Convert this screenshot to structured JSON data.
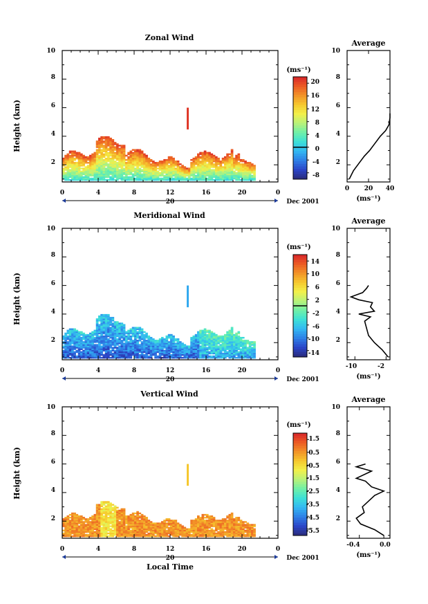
{
  "chart_data": [
    {
      "type": "heatmap",
      "title": "Zonal Wind",
      "ylabel": "Height (km)",
      "xlim": [
        0,
        24
      ],
      "ylim": [
        0.8,
        10
      ],
      "x_ticks": [
        "0",
        "4",
        "8",
        "12",
        "16",
        "20",
        "0"
      ],
      "y_ticks": [
        "2",
        "4",
        "6",
        "8",
        "10"
      ],
      "date_bar": {
        "day_label": "20",
        "suffix": "Dec 2001"
      },
      "colorbar": {
        "unit_label": "(ms⁻¹)",
        "range": [
          -10,
          22
        ],
        "ticks": [
          "20",
          "16",
          "12",
          "8",
          "4",
          "0",
          "-4",
          "-8"
        ],
        "contour_level": 0
      },
      "profile": {
        "title": "Average",
        "xlabel": "(ms⁻¹)",
        "xlim": [
          0,
          40
        ],
        "ylim": [
          0.8,
          10
        ],
        "x_ticks": [
          "0",
          "20",
          "40"
        ],
        "y_ticks": [
          "2",
          "4",
          "6",
          "8",
          "10"
        ],
        "points": [
          [
            2,
            1.0
          ],
          [
            6,
            1.6
          ],
          [
            11,
            2.1
          ],
          [
            16,
            2.6
          ],
          [
            21,
            3.0
          ],
          [
            26,
            3.5
          ],
          [
            31,
            4.0
          ],
          [
            36,
            4.4
          ],
          [
            39,
            4.8
          ],
          [
            40,
            5.3
          ],
          [
            40,
            5.6
          ]
        ]
      }
    },
    {
      "type": "heatmap",
      "title": "Meridional Wind",
      "ylabel": "Height (km)",
      "xlim": [
        0,
        24
      ],
      "ylim": [
        0.8,
        10
      ],
      "x_ticks": [
        "0",
        "4",
        "8",
        "12",
        "16",
        "20",
        "0"
      ],
      "y_ticks": [
        "2",
        "4",
        "6",
        "8",
        "10"
      ],
      "date_bar": {
        "day_label": "20",
        "suffix": "Dec 2001"
      },
      "colorbar": {
        "unit_label": "(ms⁻¹)",
        "range": [
          -16,
          16
        ],
        "ticks": [
          "14",
          "10",
          "6",
          "2",
          "-2",
          "-6",
          "-10",
          "-14"
        ],
        "contour_level": 0
      },
      "profile": {
        "title": "Average",
        "xlabel": "(ms⁻¹)",
        "xlim": [
          -12,
          -1
        ],
        "ylim": [
          0.8,
          10
        ],
        "x_ticks": [
          "-10",
          "-2"
        ],
        "y_ticks": [
          "2",
          "4",
          "6",
          "8",
          "10"
        ],
        "points": [
          [
            -1.5,
            1.0
          ],
          [
            -3,
            1.5
          ],
          [
            -5,
            2.0
          ],
          [
            -6.5,
            2.5
          ],
          [
            -7,
            3.0
          ],
          [
            -7.5,
            3.5
          ],
          [
            -6,
            3.8
          ],
          [
            -9,
            4.0
          ],
          [
            -5,
            4.2
          ],
          [
            -6,
            4.5
          ],
          [
            -5.5,
            4.8
          ],
          [
            -9,
            5.0
          ],
          [
            -11,
            5.2
          ],
          [
            -8,
            5.5
          ],
          [
            -7,
            5.8
          ],
          [
            -6.5,
            6.0
          ]
        ]
      }
    },
    {
      "type": "heatmap",
      "title": "Vertical Wind",
      "ylabel": "Height (km)",
      "xlabel": "Local Time",
      "xlim": [
        0,
        24
      ],
      "ylim": [
        0.8,
        10
      ],
      "x_ticks": [
        "0",
        "4",
        "8",
        "12",
        "16",
        "20",
        "0"
      ],
      "y_ticks": [
        "2",
        "4",
        "6",
        "8",
        "10"
      ],
      "date_bar": {
        "day_label": "20",
        "suffix": "Dec 2001"
      },
      "colorbar": {
        "unit_label": "(ms⁻¹)",
        "range": [
          -6.5,
          2.0
        ],
        "ticks": [
          "1.5",
          "0.5",
          "-0.5",
          "-1.5",
          "-2.5",
          "-3.5",
          "-4.5",
          "-5.5"
        ]
      },
      "profile": {
        "title": "Average",
        "xlabel": "(ms⁻¹)",
        "xlim": [
          -0.6,
          0.1
        ],
        "ylim": [
          0.8,
          10
        ],
        "x_ticks": [
          "-0.4",
          "0.0"
        ],
        "y_ticks": [
          "2",
          "4",
          "6",
          "8",
          "10"
        ],
        "points": [
          [
            0.0,
            1.0
          ],
          [
            -0.15,
            1.4
          ],
          [
            -0.38,
            1.8
          ],
          [
            -0.45,
            2.2
          ],
          [
            -0.32,
            2.6
          ],
          [
            -0.35,
            3.0
          ],
          [
            -0.25,
            3.4
          ],
          [
            -0.15,
            3.8
          ],
          [
            0.0,
            4.1
          ],
          [
            -0.2,
            4.4
          ],
          [
            -0.3,
            4.8
          ],
          [
            -0.45,
            5.0
          ],
          [
            -0.2,
            5.5
          ],
          [
            -0.45,
            5.8
          ],
          [
            -0.3,
            6.0
          ]
        ]
      }
    }
  ]
}
